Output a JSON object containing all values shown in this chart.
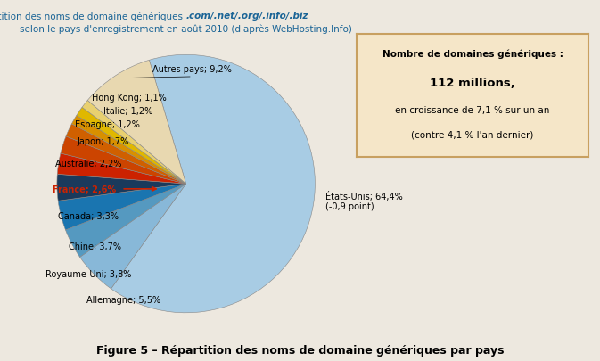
{
  "title_line1": "Répartition des noms de domaine génériques ",
  "title_italic": ".com/.net/.org/.info/.biz",
  "title_line2": "selon le pays d'enregistrement en août 2010 (d'après WebHosting.Info)",
  "figure_caption": "Figure 5 – Répartition des noms de domaine génériques par pays",
  "slices": [
    {
      "label": "États-Unis; 64,4%\n(-0,9 point)",
      "value": 64.4,
      "color": "#a8cce4",
      "side": "right"
    },
    {
      "label": "Allemagne; 5,5%",
      "value": 5.5,
      "color": "#88b8d8",
      "side": "left"
    },
    {
      "label": "Royaume-Uni; 3,8%",
      "value": 3.8,
      "color": "#5599c0",
      "side": "left"
    },
    {
      "label": "Chine; 3,7%",
      "value": 3.7,
      "color": "#1a75b0",
      "side": "left"
    },
    {
      "label": "Canada; 3,3%",
      "value": 3.3,
      "color": "#1a3a5c",
      "side": "left"
    },
    {
      "label": "France; 2,6%",
      "value": 2.6,
      "color": "#cc2200",
      "side": "left",
      "red_arrow": true
    },
    {
      "label": "Australie; 2,2%",
      "value": 2.2,
      "color": "#cc4400",
      "side": "left"
    },
    {
      "label": "Japon; 1,7%",
      "value": 1.7,
      "color": "#d06000",
      "side": "left"
    },
    {
      "label": "Espagne; 1,2%",
      "value": 1.2,
      "color": "#d89000",
      "side": "left"
    },
    {
      "label": "Italie; 1,2%",
      "value": 1.2,
      "color": "#e0b800",
      "side": "left"
    },
    {
      "label": "Hong Kong; 1,1%",
      "value": 1.1,
      "color": "#e8d070",
      "side": "left"
    },
    {
      "label": "Autres pays; 9,2%",
      "value": 9.2,
      "color": "#e8d8b0",
      "side": "top"
    }
  ],
  "box_text_line1": "Nombre de domaines génériques :",
  "box_text_line2": "112 millions,",
  "box_text_line3": "en croissance de 7,1 % sur un an",
  "box_text_line4": "(contre 4,1 % l'an dernier)",
  "box_facecolor": "#f5e6c8",
  "box_edgecolor": "#c8a060",
  "background_color": "#ede8df",
  "title_color": "#1a6496"
}
